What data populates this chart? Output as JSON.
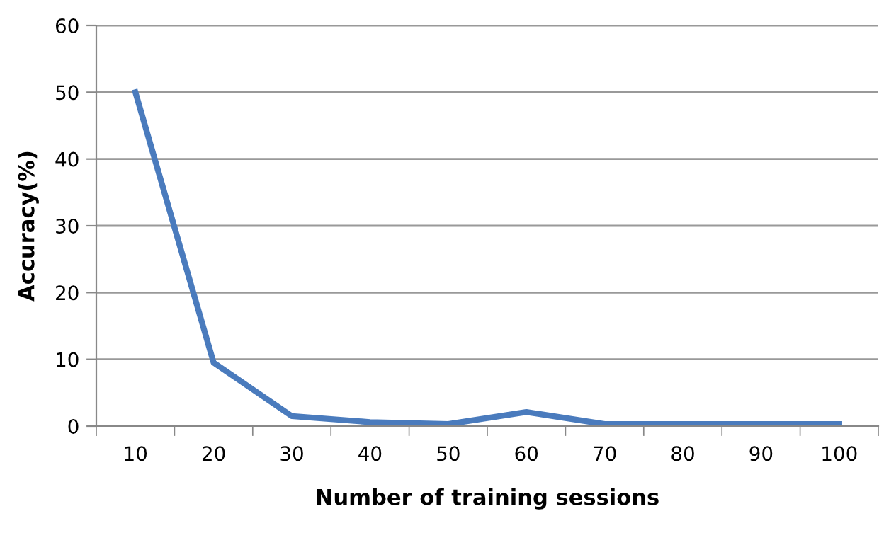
{
  "chart_data": {
    "type": "line",
    "xlabel": "Number of training sessions",
    "ylabel": "Accuracy(%)",
    "categories": [
      "10",
      "20",
      "30",
      "40",
      "50",
      "60",
      "70",
      "80",
      "90",
      "100"
    ],
    "series": [
      {
        "color": "#4a7bbd",
        "values": [
          50,
          9.5,
          1.5,
          0.6,
          0.3,
          2.1,
          0.3,
          0.3,
          0.3,
          0.3
        ]
      }
    ],
    "ylim": [
      0,
      60
    ],
    "yticks": [
      0,
      10,
      20,
      30,
      40,
      50,
      60
    ],
    "grid": "y",
    "marker": "none",
    "line_style": "solid"
  }
}
